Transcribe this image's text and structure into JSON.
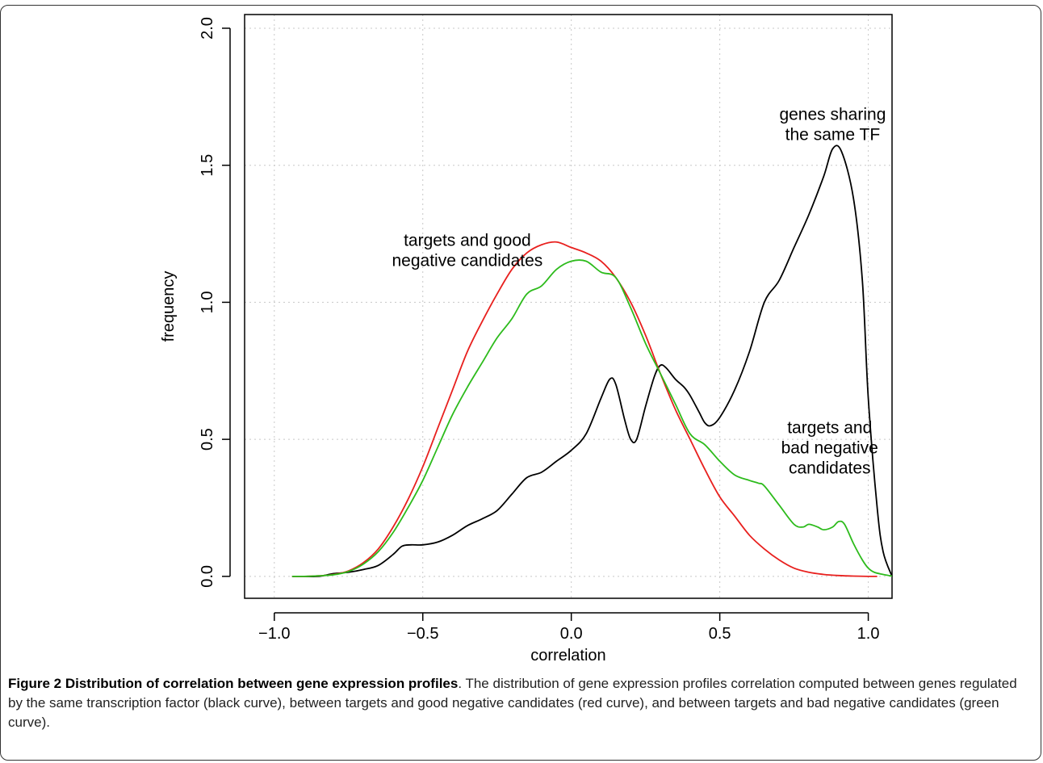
{
  "chart_data": {
    "type": "line",
    "title": "",
    "xlabel": "correlation",
    "ylabel": "frequency",
    "xlim": [
      -1.1,
      1.08
    ],
    "ylim": [
      -0.08,
      2.05
    ],
    "x_ticks": [
      "-1.0",
      "-0.5",
      "0.0",
      "0.5",
      "1.0"
    ],
    "x_tick_values": [
      -1.0,
      -0.5,
      0.0,
      0.5,
      1.0
    ],
    "y_ticks": [
      "0.0",
      "0.5",
      "1.0",
      "1.5",
      "2.0"
    ],
    "y_tick_values": [
      0.0,
      0.5,
      1.0,
      1.5,
      2.0
    ],
    "grid": true,
    "legend": "none",
    "annotations": [
      {
        "lines": [
          "genes sharing",
          "the same TF"
        ],
        "x": 0.88,
        "y": 1.65
      },
      {
        "lines": [
          "targets and good",
          "negative candidates"
        ],
        "x": -0.35,
        "y": 1.19
      },
      {
        "lines": [
          "targets and",
          "bad negative",
          "candidates"
        ],
        "x": 0.87,
        "y": 0.47
      }
    ],
    "series": [
      {
        "color": "#000000",
        "x": [
          -0.94,
          -0.9,
          -0.85,
          -0.8,
          -0.75,
          -0.7,
          -0.65,
          -0.6,
          -0.57,
          -0.54,
          -0.5,
          -0.45,
          -0.4,
          -0.35,
          -0.3,
          -0.25,
          -0.2,
          -0.15,
          -0.1,
          -0.05,
          0.0,
          0.05,
          0.1,
          0.13,
          0.15,
          0.18,
          0.2,
          0.22,
          0.25,
          0.28,
          0.3,
          0.32,
          0.35,
          0.38,
          0.4,
          0.43,
          0.45,
          0.47,
          0.5,
          0.55,
          0.6,
          0.65,
          0.7,
          0.75,
          0.8,
          0.85,
          0.88,
          0.91,
          0.95,
          0.98,
          1.0,
          1.03,
          1.05,
          1.08
        ],
        "y": [
          0.0,
          0.0,
          0.0,
          0.01,
          0.015,
          0.025,
          0.04,
          0.08,
          0.11,
          0.115,
          0.115,
          0.125,
          0.15,
          0.185,
          0.21,
          0.24,
          0.3,
          0.36,
          0.38,
          0.42,
          0.46,
          0.52,
          0.65,
          0.72,
          0.7,
          0.57,
          0.5,
          0.5,
          0.62,
          0.73,
          0.77,
          0.76,
          0.72,
          0.69,
          0.66,
          0.6,
          0.56,
          0.55,
          0.58,
          0.68,
          0.82,
          1.0,
          1.08,
          1.2,
          1.32,
          1.46,
          1.56,
          1.55,
          1.38,
          1.08,
          0.65,
          0.25,
          0.09,
          0.0
        ]
      },
      {
        "color": "#e8201e",
        "x": [
          -0.94,
          -0.9,
          -0.85,
          -0.8,
          -0.75,
          -0.7,
          -0.65,
          -0.6,
          -0.55,
          -0.5,
          -0.45,
          -0.4,
          -0.35,
          -0.3,
          -0.25,
          -0.2,
          -0.15,
          -0.1,
          -0.05,
          0.0,
          0.05,
          0.1,
          0.15,
          0.2,
          0.25,
          0.3,
          0.35,
          0.4,
          0.45,
          0.5,
          0.55,
          0.6,
          0.65,
          0.7,
          0.75,
          0.8,
          0.85,
          0.9,
          0.95,
          1.0,
          1.03
        ],
        "y": [
          0.0,
          0.0,
          0.002,
          0.007,
          0.02,
          0.05,
          0.1,
          0.18,
          0.28,
          0.4,
          0.54,
          0.68,
          0.82,
          0.93,
          1.03,
          1.12,
          1.18,
          1.21,
          1.22,
          1.2,
          1.18,
          1.15,
          1.09,
          1.0,
          0.88,
          0.74,
          0.61,
          0.5,
          0.39,
          0.29,
          0.22,
          0.15,
          0.1,
          0.06,
          0.03,
          0.015,
          0.007,
          0.003,
          0.001,
          0.0,
          0.0
        ]
      },
      {
        "color": "#2dbb1c",
        "x": [
          -0.94,
          -0.9,
          -0.85,
          -0.8,
          -0.75,
          -0.7,
          -0.65,
          -0.6,
          -0.55,
          -0.5,
          -0.45,
          -0.4,
          -0.35,
          -0.3,
          -0.25,
          -0.2,
          -0.15,
          -0.1,
          -0.05,
          0.0,
          0.05,
          0.1,
          0.15,
          0.2,
          0.25,
          0.3,
          0.35,
          0.4,
          0.45,
          0.5,
          0.55,
          0.6,
          0.63,
          0.65,
          0.7,
          0.75,
          0.78,
          0.8,
          0.83,
          0.85,
          0.88,
          0.9,
          0.92,
          0.95,
          0.98,
          1.0,
          1.02,
          1.05,
          1.07,
          1.08
        ],
        "y": [
          0.0,
          0.0,
          0.002,
          0.006,
          0.018,
          0.045,
          0.09,
          0.16,
          0.25,
          0.35,
          0.47,
          0.59,
          0.69,
          0.78,
          0.87,
          0.94,
          1.03,
          1.06,
          1.12,
          1.15,
          1.15,
          1.11,
          1.09,
          0.98,
          0.85,
          0.74,
          0.63,
          0.52,
          0.48,
          0.42,
          0.37,
          0.35,
          0.34,
          0.33,
          0.26,
          0.19,
          0.18,
          0.19,
          0.18,
          0.17,
          0.18,
          0.2,
          0.19,
          0.12,
          0.06,
          0.03,
          0.015,
          0.007,
          0.003,
          0.001
        ]
      }
    ]
  },
  "caption": {
    "label": "Figure 2 Distribution of correlation between gene expression profiles",
    "text": ". The distribution of gene expression profiles correlation computed between genes regulated by the same transcription factor (black curve), between targets and good negative candidates (red curve), and between targets and bad negative candidates (green curve)."
  }
}
